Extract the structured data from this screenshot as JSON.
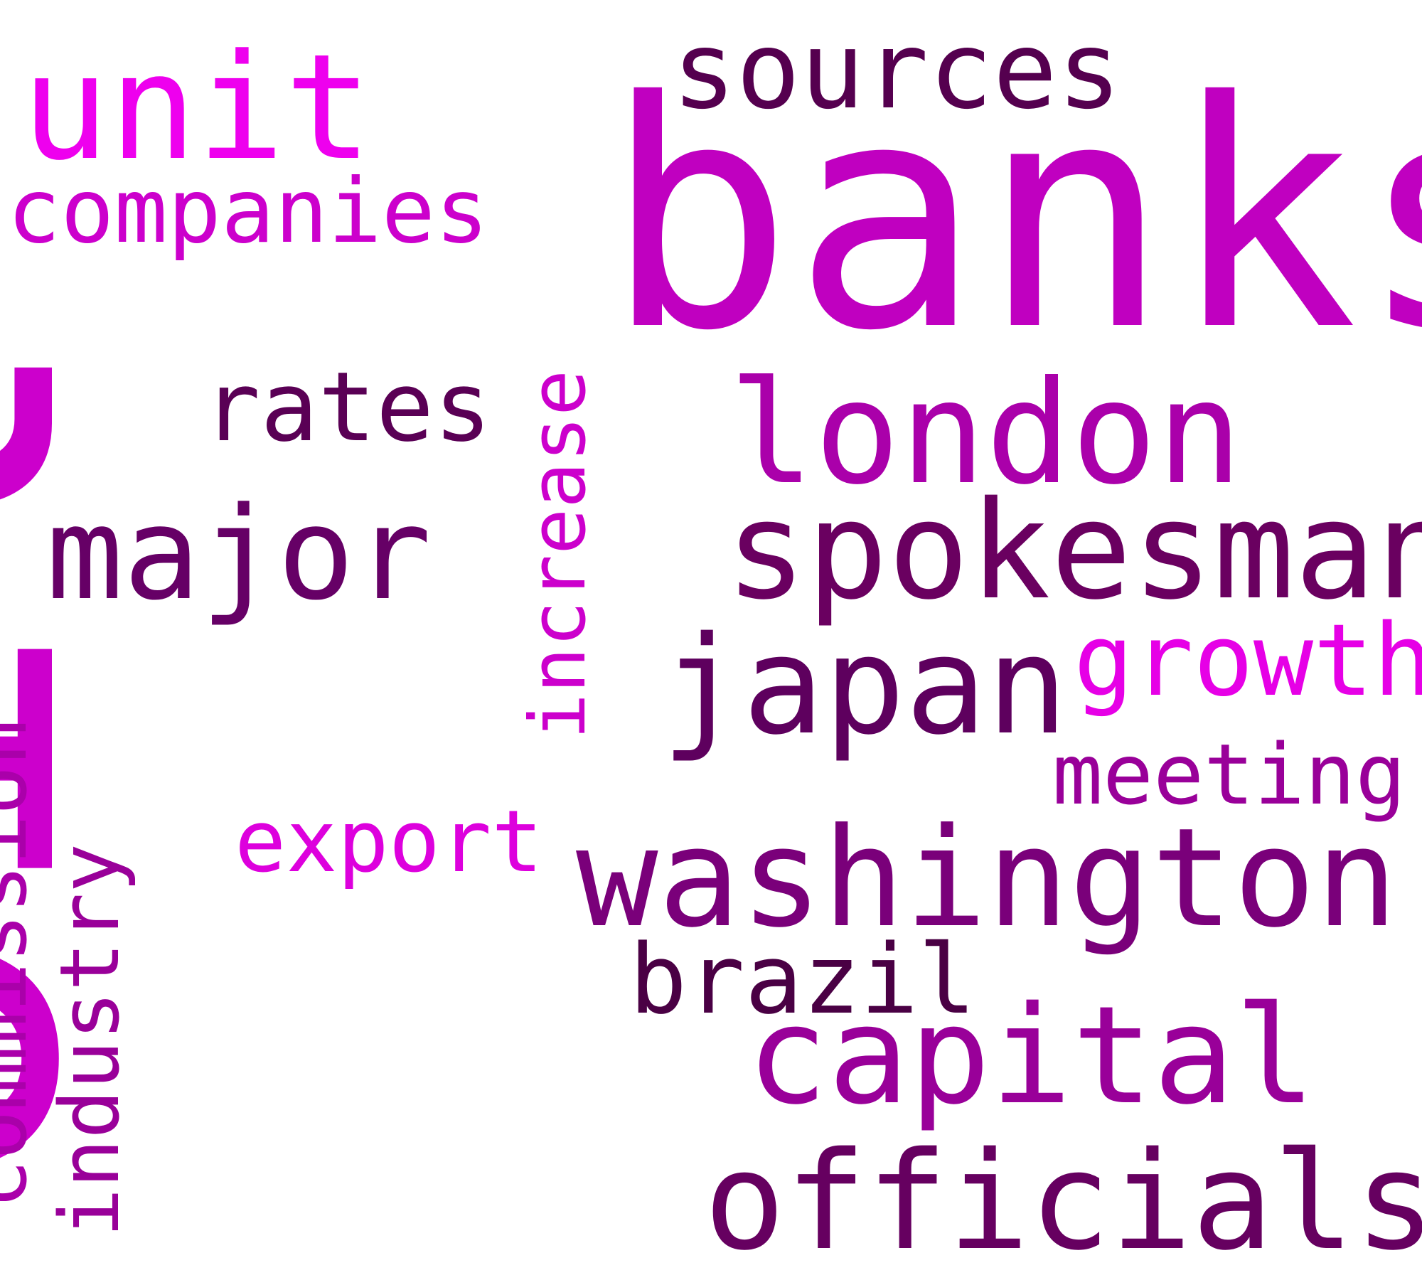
{
  "words": [
    {
      "id": "oil",
      "text": "oil",
      "color": "#cc00cc"
    },
    {
      "id": "banks",
      "text": "banks",
      "color": "#c000c0"
    },
    {
      "id": "sources",
      "text": "sources",
      "color": "#55004f"
    },
    {
      "id": "unit",
      "text": "unit",
      "color": "#ee00ee"
    },
    {
      "id": "companies",
      "text": "companies",
      "color": "#cc00cc"
    },
    {
      "id": "rates",
      "text": "rates",
      "color": "#5a0055"
    },
    {
      "id": "london",
      "text": "london",
      "color": "#aa00aa"
    },
    {
      "id": "increase",
      "text": "increase",
      "color": "#cc00cc"
    },
    {
      "id": "major",
      "text": "major",
      "color": "#660066"
    },
    {
      "id": "spokesman",
      "text": "spokesman",
      "color": "#6a0060"
    },
    {
      "id": "japan",
      "text": "japan",
      "color": "#5e005e"
    },
    {
      "id": "growth",
      "text": "growth",
      "color": "#e600e6"
    },
    {
      "id": "meeting",
      "text": "meeting",
      "color": "#990099"
    },
    {
      "id": "commission",
      "text": "commission",
      "color": "#aa00aa"
    },
    {
      "id": "industry",
      "text": "industry",
      "color": "#990099"
    },
    {
      "id": "export",
      "text": "export",
      "color": "#dd00dd"
    },
    {
      "id": "washington",
      "text": "washington",
      "color": "#7a007a"
    },
    {
      "id": "brazil",
      "text": "brazil",
      "color": "#4a0044"
    },
    {
      "id": "capital",
      "text": "capital",
      "color": "#990099"
    },
    {
      "id": "officials",
      "text": "officials",
      "color": "#660060"
    }
  ]
}
